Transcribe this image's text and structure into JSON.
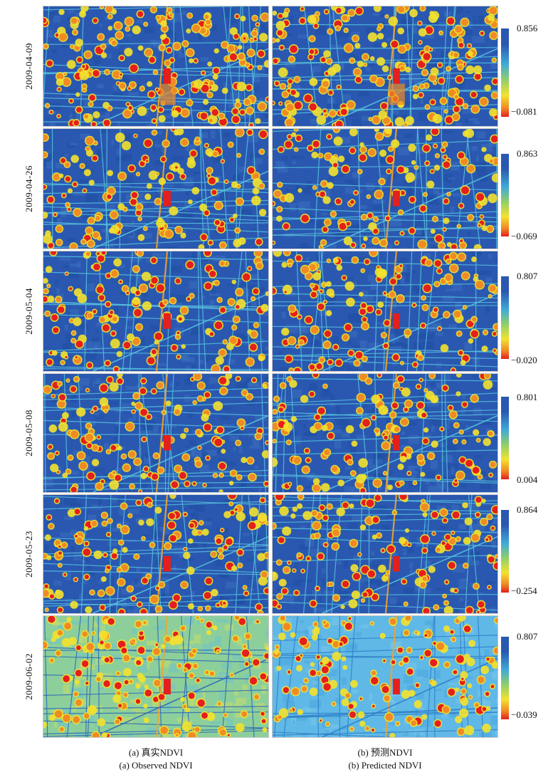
{
  "rows": [
    {
      "date": "2009-04-09",
      "max": "0.856",
      "min": "−0.081"
    },
    {
      "date": "2009-04-26",
      "max": "0.863",
      "min": "−0.069"
    },
    {
      "date": "2009-05-04",
      "max": "0.807",
      "min": "−0.020"
    },
    {
      "date": "2009-05-08",
      "max": "0.801",
      "min": "0.004"
    },
    {
      "date": "2009-05-23",
      "max": "0.864",
      "min": "−0.254"
    },
    {
      "date": "2009-06-02",
      "max": "0.807",
      "min": "−0.039"
    }
  ],
  "captions": {
    "left_cn": "(a) 真实NDVI",
    "left_en": "(a) Observed NDVI",
    "right_cn": "(b) 预测NDVI",
    "right_en": "(b) Predicted NDVI"
  },
  "colors": {
    "high": "#2a58b0",
    "mid_high": "#3fa9d8",
    "mid": "#8fcf6a",
    "mid_low": "#f3e22e",
    "low": "#e41f1c"
  }
}
